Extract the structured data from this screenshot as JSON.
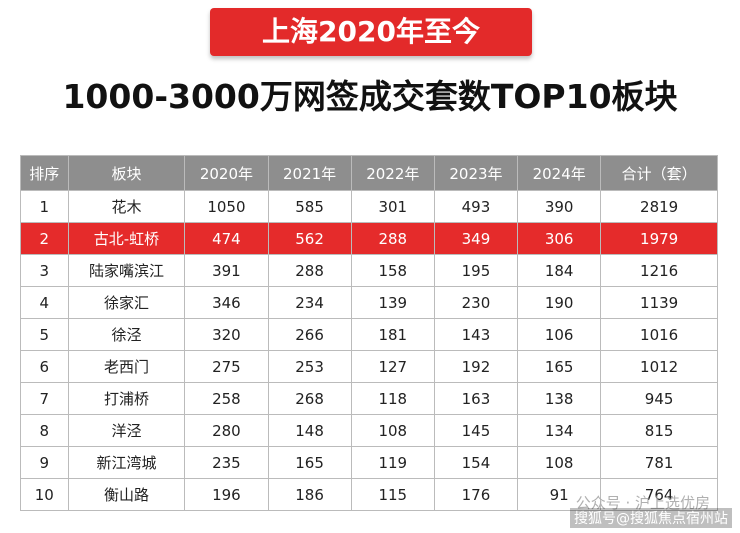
{
  "header": {
    "banner": "上海2020年至今",
    "title": "1000-3000万网签成交套数TOP10板块"
  },
  "table": {
    "columns": [
      "排序",
      "板块",
      "2020年",
      "2021年",
      "2022年",
      "2023年",
      "2024年",
      "合计（套）"
    ],
    "rows": [
      [
        1,
        "花木",
        1050,
        585,
        301,
        493,
        390,
        2819
      ],
      [
        2,
        "古北-虹桥",
        474,
        562,
        288,
        349,
        306,
        1979
      ],
      [
        3,
        "陆家嘴滨江",
        391,
        288,
        158,
        195,
        184,
        1216
      ],
      [
        4,
        "徐家汇",
        346,
        234,
        139,
        230,
        190,
        1139
      ],
      [
        5,
        "徐泾",
        320,
        266,
        181,
        143,
        106,
        1016
      ],
      [
        6,
        "老西门",
        275,
        253,
        127,
        192,
        165,
        1012
      ],
      [
        7,
        "打浦桥",
        258,
        268,
        118,
        163,
        138,
        945
      ],
      [
        8,
        "洋泾",
        280,
        148,
        108,
        145,
        134,
        815
      ],
      [
        9,
        "新江湾城",
        235,
        165,
        119,
        154,
        108,
        781
      ],
      [
        10,
        "衡山路",
        196,
        186,
        115,
        176,
        91,
        764
      ]
    ]
  },
  "watermarks": [
    "公众号 · 沪上选优房",
    "搜狐号@搜狐焦点宿州站"
  ]
}
